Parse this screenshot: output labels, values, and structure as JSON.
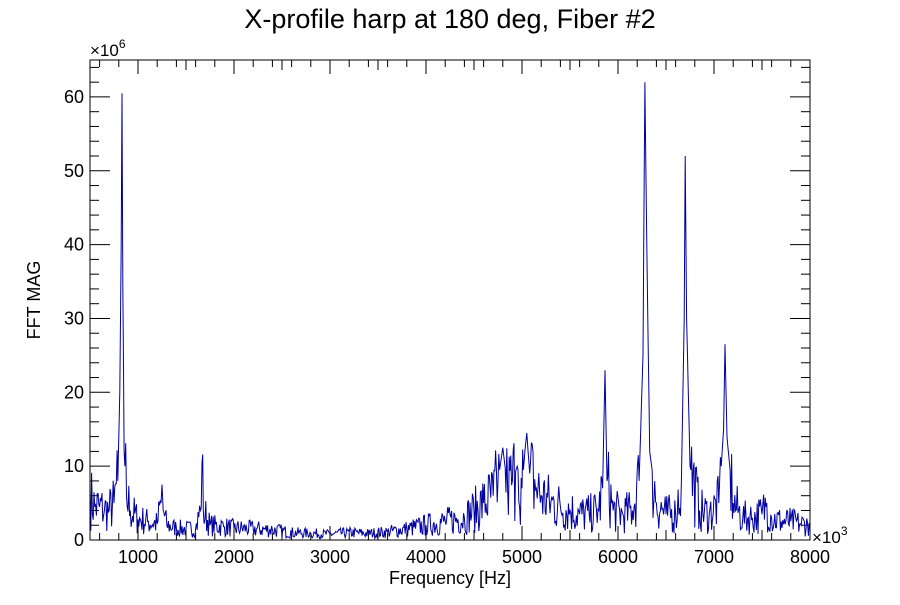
{
  "chart_data": {
    "type": "line",
    "title": "X-profile harp at 180 deg, Fiber #2",
    "xlabel": "Frequency [Hz]",
    "ylabel": "FFT MAG",
    "x_multiplier": "×10",
    "x_multiplier_exp": "3",
    "y_multiplier": "×10",
    "y_multiplier_exp": "6",
    "xlim": [
      500,
      8000
    ],
    "ylim": [
      0,
      65
    ],
    "x_ticks": [
      1000,
      2000,
      3000,
      4000,
      5000,
      6000,
      7000,
      8000
    ],
    "x_tick_labels": [
      "1000",
      "2000",
      "3000",
      "4000",
      "5000",
      "6000",
      "7000",
      "8000"
    ],
    "y_ticks": [
      0,
      10,
      20,
      30,
      40,
      50,
      60
    ],
    "y_tick_labels": [
      "0",
      "10",
      "20",
      "30",
      "40",
      "50",
      "60"
    ],
    "grid": false,
    "line_color": "#0000a0",
    "noise_fraction": 0.6,
    "series": [
      {
        "name": "FFT MAG",
        "points": [
          [
            500,
            6
          ],
          [
            550,
            4.5
          ],
          [
            600,
            4.5
          ],
          [
            650,
            4
          ],
          [
            700,
            4
          ],
          [
            750,
            5
          ],
          [
            790,
            8
          ],
          [
            810,
            20
          ],
          [
            825,
            40
          ],
          [
            833,
            60.5
          ],
          [
            842,
            35
          ],
          [
            855,
            12
          ],
          [
            880,
            6
          ],
          [
            920,
            4
          ],
          [
            1000,
            2.8
          ],
          [
            1100,
            2.5
          ],
          [
            1200,
            2.2
          ],
          [
            1240,
            5
          ],
          [
            1250,
            7.5
          ],
          [
            1262,
            4
          ],
          [
            1300,
            2
          ],
          [
            1400,
            1.6
          ],
          [
            1500,
            1.5
          ],
          [
            1600,
            1.5
          ],
          [
            1650,
            4
          ],
          [
            1667,
            10.5
          ],
          [
            1680,
            4
          ],
          [
            1750,
            2
          ],
          [
            1900,
            1.8
          ],
          [
            2000,
            1.6
          ],
          [
            2200,
            1.5
          ],
          [
            2400,
            1.4
          ],
          [
            2600,
            1
          ],
          [
            2800,
            0.9
          ],
          [
            3000,
            0.8
          ],
          [
            3200,
            1
          ],
          [
            3400,
            0.9
          ],
          [
            3600,
            1.1
          ],
          [
            3800,
            1.5
          ],
          [
            4000,
            2
          ],
          [
            4200,
            2.5
          ],
          [
            4400,
            3
          ],
          [
            4500,
            4
          ],
          [
            4600,
            5
          ],
          [
            4700,
            6
          ],
          [
            4750,
            8
          ],
          [
            4800,
            12.5
          ],
          [
            4850,
            7
          ],
          [
            4900,
            8
          ],
          [
            4950,
            10
          ],
          [
            5000,
            7
          ],
          [
            5030,
            12
          ],
          [
            5050,
            14.5
          ],
          [
            5080,
            9
          ],
          [
            5150,
            7
          ],
          [
            5200,
            6
          ],
          [
            5300,
            5
          ],
          [
            5400,
            4.5
          ],
          [
            5500,
            4
          ],
          [
            5600,
            3.5
          ],
          [
            5700,
            3.5
          ],
          [
            5800,
            4
          ],
          [
            5840,
            7
          ],
          [
            5865,
            23
          ],
          [
            5885,
            8
          ],
          [
            5950,
            4
          ],
          [
            6050,
            3.5
          ],
          [
            6150,
            4
          ],
          [
            6220,
            8
          ],
          [
            6260,
            25
          ],
          [
            6280,
            62
          ],
          [
            6300,
            40
          ],
          [
            6330,
            12
          ],
          [
            6400,
            5
          ],
          [
            6500,
            3.5
          ],
          [
            6600,
            3.5
          ],
          [
            6660,
            8
          ],
          [
            6690,
            30
          ],
          [
            6700,
            52
          ],
          [
            6715,
            30
          ],
          [
            6750,
            10
          ],
          [
            6850,
            4
          ],
          [
            6950,
            3.5
          ],
          [
            7050,
            5
          ],
          [
            7100,
            15
          ],
          [
            7115,
            26.5
          ],
          [
            7135,
            14
          ],
          [
            7200,
            5
          ],
          [
            7300,
            3
          ],
          [
            7400,
            3
          ],
          [
            7500,
            3.5
          ],
          [
            7550,
            5
          ],
          [
            7600,
            3
          ],
          [
            7700,
            2.5
          ],
          [
            7800,
            2.5
          ],
          [
            7900,
            2.2
          ],
          [
            8000,
            2
          ]
        ]
      }
    ]
  }
}
